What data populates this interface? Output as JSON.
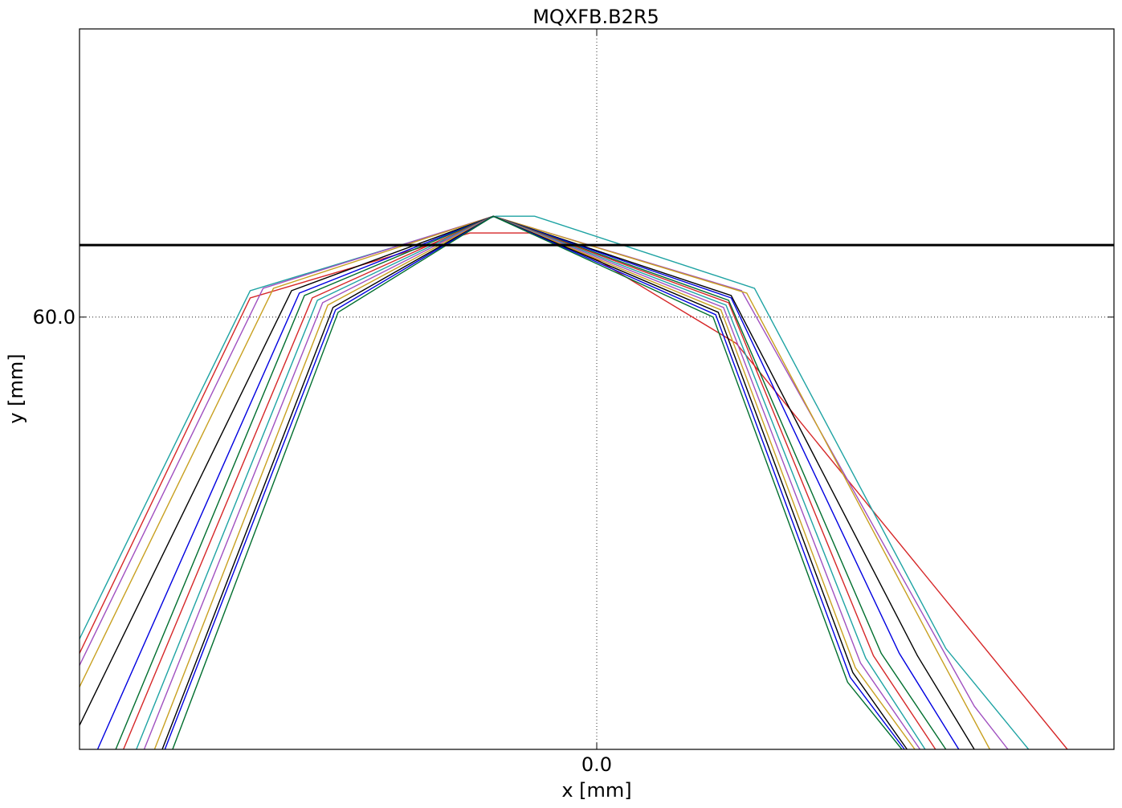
{
  "chart_data": {
    "type": "line",
    "title": "MQXFB.B2R5",
    "xlabel": "x [mm]",
    "ylabel": "y [mm]",
    "xlim": [
      -1,
      1
    ],
    "ylim": [
      42,
      72
    ],
    "xticks": [
      {
        "value": 0,
        "label": "0.0"
      }
    ],
    "yticks": [
      {
        "value": 60,
        "label": "60.0"
      }
    ],
    "grid": true,
    "aperture_line": {
      "y": 63,
      "color": "#000000"
    },
    "series": [
      {
        "color": "#d62728",
        "points": [
          [
            -1,
            46.0
          ],
          [
            -0.67,
            60.8
          ],
          [
            -0.245,
            63.5
          ],
          [
            -0.13,
            63.5
          ],
          [
            0,
            62.4
          ],
          [
            0.27,
            58.9
          ],
          [
            0.91,
            42.0
          ]
        ]
      },
      {
        "color": "#1ea3a3",
        "points": [
          [
            -1,
            46.6
          ],
          [
            -0.67,
            61.1
          ],
          [
            -0.195,
            64.2
          ],
          [
            -0.12,
            64.2
          ],
          [
            0.305,
            61.2
          ],
          [
            0.675,
            46.2
          ],
          [
            0.835,
            42.0
          ]
        ]
      },
      {
        "color": "#a050c0",
        "points": [
          [
            -1,
            45.5
          ],
          [
            -0.645,
            61.2
          ],
          [
            -0.2,
            64.2
          ],
          [
            0.28,
            61.1
          ],
          [
            0.73,
            43.8
          ],
          [
            0.795,
            42.0
          ]
        ]
      },
      {
        "color": "#c8a020",
        "points": [
          [
            -1,
            44.6
          ],
          [
            -0.625,
            61.2
          ],
          [
            -0.2,
            64.2
          ],
          [
            0.29,
            61.0
          ],
          [
            0.665,
            45.8
          ],
          [
            0.76,
            42.0
          ]
        ]
      },
      {
        "color": "#000000",
        "points": [
          [
            -1,
            43.0
          ],
          [
            -0.59,
            61.1
          ],
          [
            -0.2,
            64.2
          ],
          [
            0.26,
            60.9
          ],
          [
            0.62,
            45.9
          ],
          [
            0.73,
            42.0
          ]
        ]
      },
      {
        "color": "#0000e0",
        "points": [
          [
            -0.965,
            42.0
          ],
          [
            -0.575,
            61.0
          ],
          [
            -0.2,
            64.2
          ],
          [
            0.26,
            60.8
          ],
          [
            0.585,
            46.0
          ],
          [
            0.7,
            42.0
          ]
        ]
      },
      {
        "color": "#006e2e",
        "points": [
          [
            -0.93,
            42.0
          ],
          [
            -0.565,
            60.9
          ],
          [
            -0.2,
            64.2
          ],
          [
            0.255,
            60.7
          ],
          [
            0.55,
            46.0
          ],
          [
            0.675,
            42.0
          ]
        ]
      },
      {
        "color": "#d62728",
        "points": [
          [
            -0.915,
            42.0
          ],
          [
            -0.55,
            60.8
          ],
          [
            -0.2,
            64.2
          ],
          [
            0.255,
            60.6
          ],
          [
            0.535,
            45.9
          ],
          [
            0.655,
            42.0
          ]
        ]
      },
      {
        "color": "#1ea3a3",
        "points": [
          [
            -0.89,
            42.0
          ],
          [
            -0.54,
            60.7
          ],
          [
            -0.2,
            64.2
          ],
          [
            0.25,
            60.5
          ],
          [
            0.52,
            45.8
          ],
          [
            0.635,
            42.0
          ]
        ]
      },
      {
        "color": "#a050c0",
        "points": [
          [
            -0.875,
            42.0
          ],
          [
            -0.53,
            60.6
          ],
          [
            -0.2,
            64.2
          ],
          [
            0.245,
            60.4
          ],
          [
            0.51,
            45.6
          ],
          [
            0.625,
            42.0
          ]
        ]
      },
      {
        "color": "#c8a020",
        "points": [
          [
            -0.855,
            42.0
          ],
          [
            -0.52,
            60.5
          ],
          [
            -0.2,
            64.2
          ],
          [
            0.24,
            60.3
          ],
          [
            0.5,
            45.4
          ],
          [
            0.615,
            42.0
          ]
        ]
      },
      {
        "color": "#000000",
        "points": [
          [
            -0.84,
            42.0
          ],
          [
            -0.51,
            60.4
          ],
          [
            -0.2,
            64.2
          ],
          [
            0.235,
            60.2
          ],
          [
            0.495,
            45.2
          ],
          [
            0.6,
            42.0
          ]
        ]
      },
      {
        "color": "#0000e0",
        "points": [
          [
            -0.835,
            42.0
          ],
          [
            -0.505,
            60.3
          ],
          [
            -0.2,
            64.2
          ],
          [
            0.23,
            60.1
          ],
          [
            0.49,
            45.0
          ],
          [
            0.595,
            42.0
          ]
        ]
      },
      {
        "color": "#006e2e",
        "points": [
          [
            -0.82,
            42.0
          ],
          [
            -0.5,
            60.2
          ],
          [
            -0.2,
            64.2
          ],
          [
            0.225,
            60.0
          ],
          [
            0.485,
            44.8
          ],
          [
            0.59,
            42.0
          ]
        ]
      }
    ]
  }
}
